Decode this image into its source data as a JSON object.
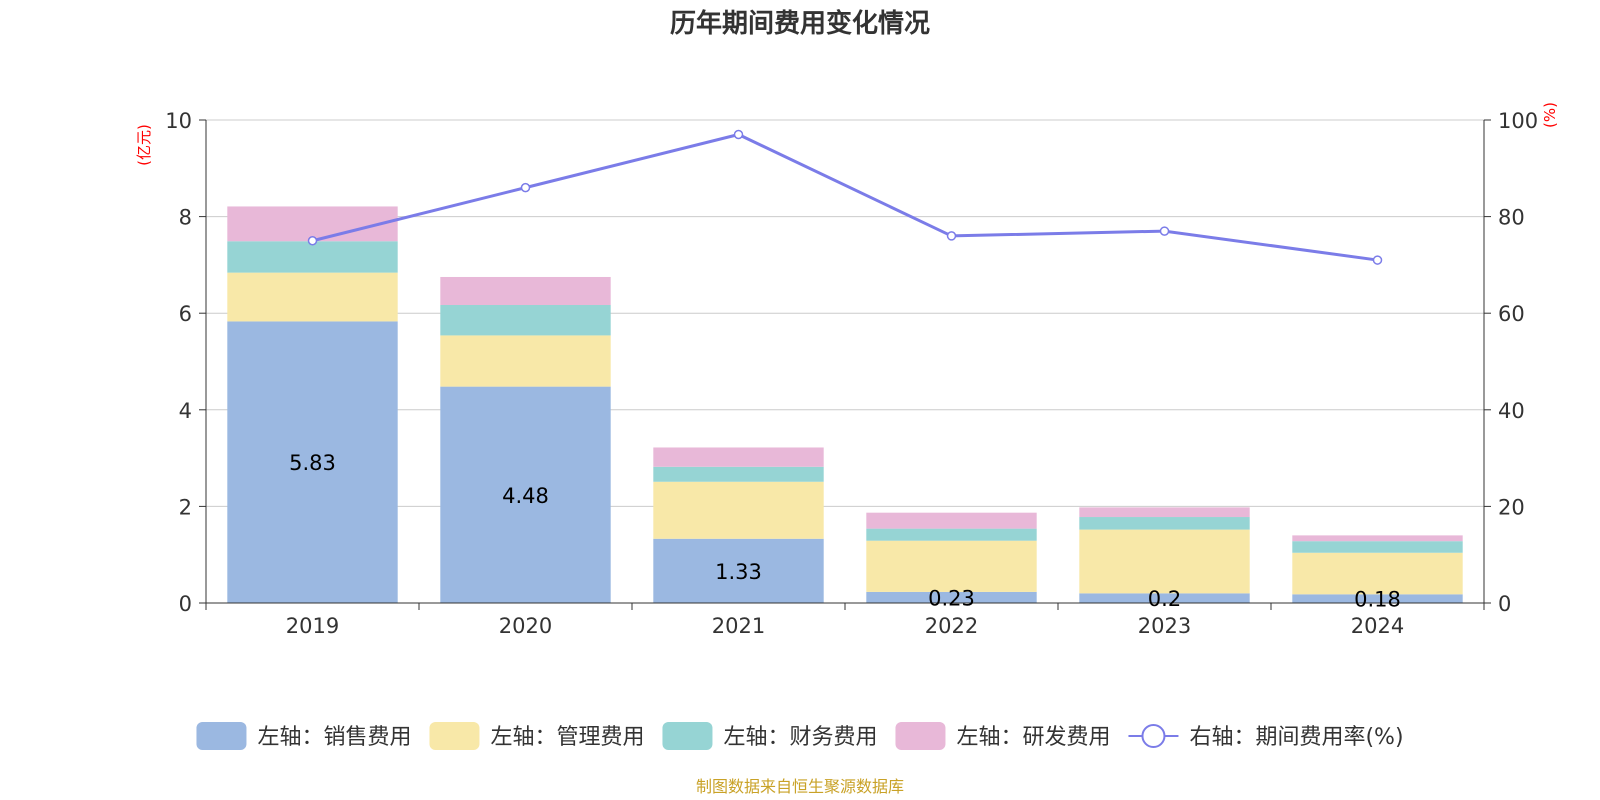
{
  "chart_data": {
    "type": "bar",
    "title": "历年期间费用变化情况",
    "categories": [
      "2019",
      "2020",
      "2021",
      "2022",
      "2023",
      "2024"
    ],
    "stacked": true,
    "left_axis": {
      "unit": "(亿元)",
      "ylim": [
        0,
        10
      ],
      "ticks": [
        "0",
        "2",
        "4",
        "6",
        "8",
        "10"
      ]
    },
    "right_axis": {
      "unit": "(%)",
      "ylim": [
        0,
        100
      ],
      "ticks": [
        "0",
        "20",
        "40",
        "60",
        "80",
        "100"
      ]
    },
    "series": [
      {
        "name": "左轴：销售费用",
        "type": "bar",
        "axis": "left",
        "color": "#9bb8e1",
        "values": [
          5.83,
          4.48,
          1.33,
          0.23,
          0.2,
          0.18
        ],
        "labels": [
          "5.83",
          "4.48",
          "1.33",
          "0.23",
          "0.2",
          "0.18"
        ]
      },
      {
        "name": "左轴：管理费用",
        "type": "bar",
        "axis": "left",
        "color": "#f8e8a8",
        "values": [
          1.01,
          1.06,
          1.18,
          1.06,
          1.32,
          0.86
        ]
      },
      {
        "name": "左轴：财务费用",
        "type": "bar",
        "axis": "left",
        "color": "#96d4d4",
        "values": [
          0.65,
          0.63,
          0.31,
          0.25,
          0.26,
          0.24
        ]
      },
      {
        "name": "左轴：研发费用",
        "type": "bar",
        "axis": "left",
        "color": "#e8b8d8",
        "values": [
          0.72,
          0.58,
          0.4,
          0.33,
          0.2,
          0.12
        ]
      },
      {
        "name": "右轴：期间费用率(%)",
        "type": "line",
        "axis": "right",
        "color": "#7b7ce8",
        "values": [
          75,
          86,
          97,
          76,
          77,
          71
        ]
      }
    ],
    "grid": true,
    "legend_position": "bottom"
  },
  "source": "制图数据来自恒生聚源数据库"
}
